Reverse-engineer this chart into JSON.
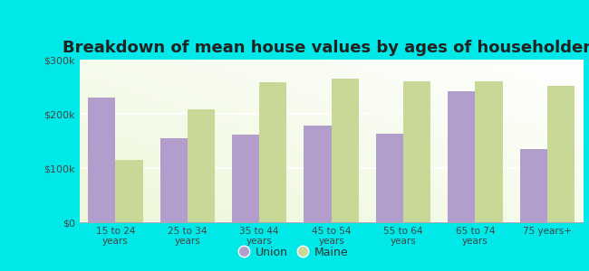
{
  "title": "Breakdown of mean house values by ages of householders",
  "categories": [
    "15 to 24\nyears",
    "25 to 34\nyears",
    "35 to 44\nyears",
    "45 to 54\nyears",
    "55 to 64\nyears",
    "65 to 74\nyears",
    "75 years+"
  ],
  "union_values": [
    230000,
    155000,
    162000,
    178000,
    163000,
    242000,
    135000
  ],
  "maine_values": [
    115000,
    208000,
    258000,
    265000,
    260000,
    260000,
    252000
  ],
  "union_color": "#b39dcc",
  "maine_color": "#c8d897",
  "background_color": "#eef8d8",
  "outer_bg": "#00e8e8",
  "ylim": [
    0,
    300000
  ],
  "yticks": [
    0,
    100000,
    200000,
    300000
  ],
  "ytick_labels": [
    "$0",
    "$100k",
    "$200k",
    "$300k"
  ],
  "legend_union": "Union",
  "legend_maine": "Maine",
  "title_fontsize": 13,
  "bar_width": 0.38
}
